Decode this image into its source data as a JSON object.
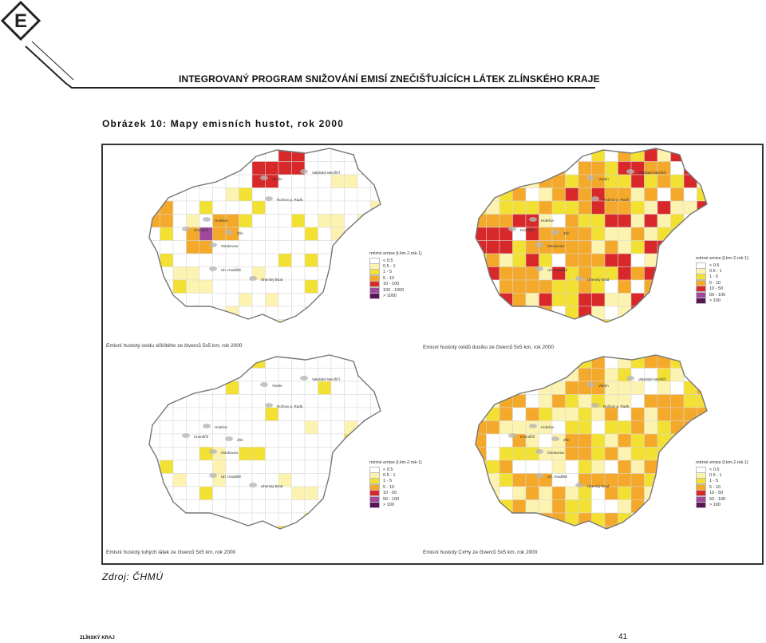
{
  "header": {
    "logo_letter": "E",
    "title": "INTEGROVANÝ PROGRAM SNIŽOVÁNÍ EMISÍ ZNEČIŠŤUJÍCÍCH LÁTEK ZLÍNSKÉHO KRAJE"
  },
  "figure": {
    "caption": "Obrázek 10:  Mapy emisních hustot, rok 2000",
    "map_labels": [
      "Vsetín",
      "Valašské Meziříčí",
      "Rožnov p. Radh.",
      "Holešov",
      "Kroměříž",
      "Zlín",
      "Otrokovice",
      "Uh. Hradiště",
      "Uherský Brod"
    ],
    "panels": [
      {
        "caption": "Emisní hustoty oxidu siřičitého ze čtverců 5x5 km, rok 2000",
        "legend_title": "měrné emise [t.km-2.rok-1]",
        "legend": [
          "< 0.5",
          "0.5 - 1",
          "1 - 5",
          "5 - 10",
          "10 - 100",
          "100 - 1000",
          "> 1000"
        ]
      },
      {
        "caption": "Emisní hustoty oxidů dusíku ze čtverců 5x5 km, rok 2000",
        "legend_title": "měrné emise [t.km-2.rok-1]",
        "legend": [
          "< 0.5",
          "0.5 - 1",
          "1 - 5",
          "5 - 10",
          "10 - 50",
          "50 - 100",
          "> 100"
        ]
      },
      {
        "caption": "Emisní hustoty tuhých látek ze čtverců 5x5 km, rok 2000",
        "legend_title": "měrné emise [t.km-2.rok-1]",
        "legend": [
          "< 0.5",
          "0.5 - 1",
          "1 - 5",
          "5 - 10",
          "10 - 50",
          "50 - 100",
          "> 100"
        ]
      },
      {
        "caption": "Emisní hustoty CxHy ze čtverců 5x5 km, rok 2000",
        "legend_title": "měrné emise [t.km-2.rok-1]",
        "legend": [
          "< 0.5",
          "0.5 - 1",
          "1 - 5",
          "5 - 10",
          "10 - 50",
          "50 - 100",
          "> 100"
        ]
      }
    ],
    "legend_colors": [
      "#ffffff",
      "#fdf3b0",
      "#f2e033",
      "#f4a92a",
      "#d8282a",
      "#a0489b",
      "#5a1557"
    ]
  },
  "source": "Zdroj: ČHMÚ",
  "footer": {
    "left": "ZLÍNSKÝ KRAJ",
    "page_number": "41"
  }
}
